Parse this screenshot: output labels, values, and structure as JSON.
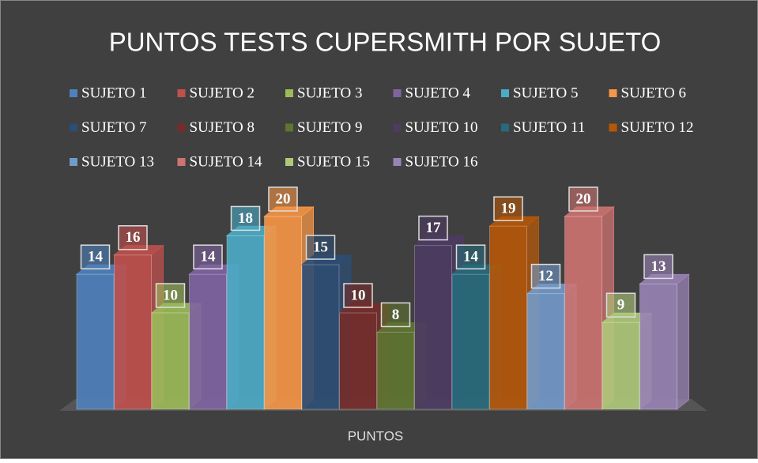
{
  "chart_data": {
    "type": "bar3d",
    "title": "PUNTOS TESTS CUPERSMITH POR SUJETO",
    "categories": [
      "PUNTOS"
    ],
    "ylim": [
      0,
      20
    ],
    "series": [
      {
        "name": "SUJETO 1",
        "color": "#4f81bd",
        "values": [
          14
        ]
      },
      {
        "name": "SUJETO 2",
        "color": "#c0504d",
        "values": [
          16
        ]
      },
      {
        "name": "SUJETO 3",
        "color": "#9bbb59",
        "values": [
          10
        ]
      },
      {
        "name": "SUJETO 4",
        "color": "#8064a2",
        "values": [
          14
        ]
      },
      {
        "name": "SUJETO 5",
        "color": "#4bacc6",
        "values": [
          18
        ]
      },
      {
        "name": "SUJETO 6",
        "color": "#f79646",
        "values": [
          20
        ]
      },
      {
        "name": "SUJETO 7",
        "color": "#2c4d75",
        "values": [
          15
        ]
      },
      {
        "name": "SUJETO 8",
        "color": "#772c2a",
        "values": [
          10
        ]
      },
      {
        "name": "SUJETO 9",
        "color": "#5f7530",
        "values": [
          8
        ]
      },
      {
        "name": "SUJETO 10",
        "color": "#4d3b62",
        "values": [
          17
        ]
      },
      {
        "name": "SUJETO 11",
        "color": "#276a7c",
        "values": [
          14
        ]
      },
      {
        "name": "SUJETO 12",
        "color": "#b65708",
        "values": [
          19
        ]
      },
      {
        "name": "SUJETO 13",
        "color": "#729aca",
        "values": [
          12
        ]
      },
      {
        "name": "SUJETO 14",
        "color": "#cd7371",
        "values": [
          20
        ]
      },
      {
        "name": "SUJETO 15",
        "color": "#afc97a",
        "values": [
          9
        ]
      },
      {
        "name": "SUJETO 16",
        "color": "#9983b5",
        "values": [
          13
        ]
      }
    ]
  }
}
